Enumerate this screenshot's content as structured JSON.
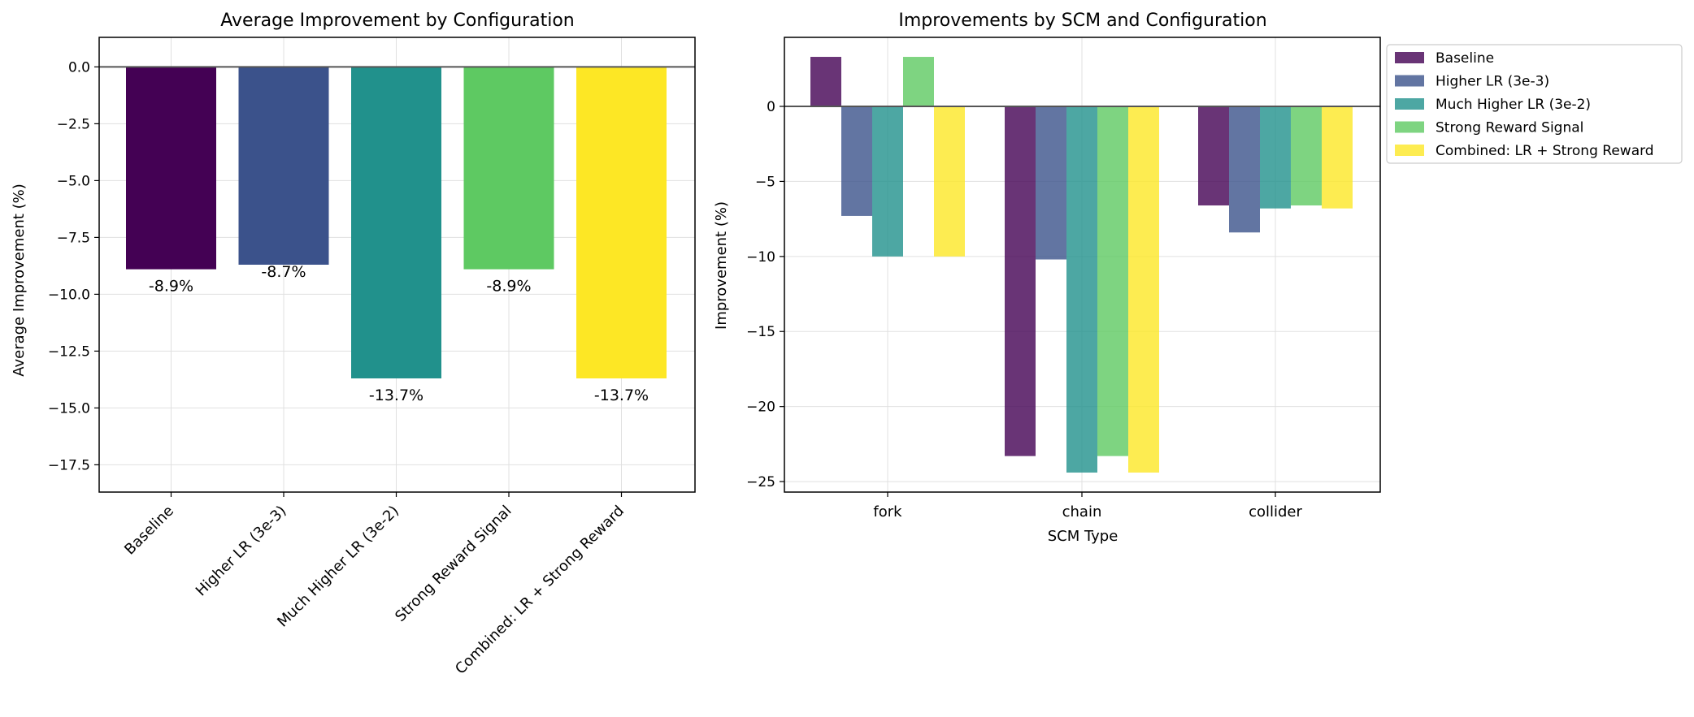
{
  "colors": [
    "#440154",
    "#3b528b",
    "#21918c",
    "#5ec962",
    "#fde725"
  ],
  "chart_data": [
    {
      "type": "bar",
      "title": "Average Improvement by Configuration",
      "xlabel": "",
      "ylabel": "Average Improvement (%)",
      "ylim": [
        -18.7,
        1.3
      ],
      "yticks": [
        0,
        -2.5,
        -5,
        -7.5,
        -10,
        -12.5,
        -15,
        -17.5
      ],
      "ytick_labels": [
        "0.0",
        "−2.5",
        "−5.0",
        "−7.5",
        "−10.0",
        "−12.5",
        "−15.0",
        "−17.5"
      ],
      "categories": [
        "Baseline",
        "Higher LR (3e-3)",
        "Much Higher LR (3e-2)",
        "Strong Reward Signal",
        "Combined: LR + Strong Reward"
      ],
      "values": [
        -8.9,
        -8.7,
        -13.7,
        -8.9,
        -13.7
      ],
      "data_labels": [
        "-8.9%",
        "-8.7%",
        "-13.7%",
        "-8.9%",
        "-13.7%"
      ],
      "grid": true,
      "zero_line": true
    },
    {
      "type": "bar",
      "title": "Improvements by SCM and Configuration",
      "xlabel": "SCM Type",
      "ylabel": "Improvement (%)",
      "ylim": [
        -25.7,
        4.6
      ],
      "yticks": [
        0,
        -5,
        -10,
        -15,
        -20,
        -25
      ],
      "ytick_labels": [
        "0",
        "−5",
        "−10",
        "−15",
        "−20",
        "−25"
      ],
      "categories": [
        "fork",
        "chain",
        "collider"
      ],
      "series": [
        {
          "name": "Baseline",
          "values": [
            3.3,
            -23.3,
            -6.6
          ]
        },
        {
          "name": "Higher LR (3e-3)",
          "values": [
            -7.3,
            -10.2,
            -8.4
          ]
        },
        {
          "name": "Much Higher LR (3e-2)",
          "values": [
            -10.0,
            -24.4,
            -6.8
          ]
        },
        {
          "name": "Strong Reward Signal",
          "values": [
            3.3,
            -23.3,
            -6.6
          ]
        },
        {
          "name": "Combined: LR + Strong Reward",
          "values": [
            -10.0,
            -24.4,
            -6.8
          ]
        }
      ],
      "legend": "outside upper-right",
      "grid": true,
      "zero_line": true
    }
  ]
}
